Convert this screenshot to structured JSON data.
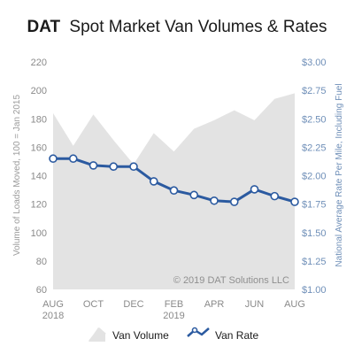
{
  "chart_data": {
    "type": "line",
    "title_brand": "DAT",
    "title": "Spot Market Van Volumes & Rates",
    "x_ticks": [
      {
        "index": 0,
        "line1": "AUG",
        "line2": "2018"
      },
      {
        "index": 2,
        "line1": "OCT",
        "line2": ""
      },
      {
        "index": 4,
        "line1": "DEC",
        "line2": ""
      },
      {
        "index": 6,
        "line1": "FEB",
        "line2": "2019"
      },
      {
        "index": 8,
        "line1": "APR",
        "line2": ""
      },
      {
        "index": 10,
        "line1": "JUN",
        "line2": ""
      },
      {
        "index": 12,
        "line1": "AUG",
        "line2": ""
      }
    ],
    "x_count": 13,
    "y_left": {
      "label": "Volume of Loads Moved, 100 = Jan 2015",
      "range": [
        60,
        220
      ],
      "ticks": [
        "220",
        "200",
        "180",
        "160",
        "140",
        "120",
        "100",
        "80",
        "60"
      ],
      "tick_values": [
        220,
        200,
        180,
        160,
        140,
        120,
        100,
        80,
        60
      ]
    },
    "y_right": {
      "label": "National Average Rate Per Mile, Including Fuel",
      "range": [
        1.0,
        3.0
      ],
      "ticks": [
        "$3.00",
        "$2.75",
        "$2.50",
        "$2.25",
        "$2.00",
        "$1.75",
        "$1.50",
        "$1.25",
        "$1.00"
      ],
      "tick_values": [
        3.0,
        2.75,
        2.5,
        2.25,
        2.0,
        1.75,
        1.5,
        1.25,
        1.0
      ]
    },
    "series": [
      {
        "name": "Van Volume",
        "kind": "area",
        "axis": "left",
        "color": "#e3e3e3",
        "values": [
          184,
          161,
          183,
          165,
          148,
          170,
          157,
          173,
          179,
          186,
          179,
          194,
          198
        ]
      },
      {
        "name": "Van Rate",
        "kind": "line",
        "axis": "right",
        "color": "#2b5aa0",
        "values": [
          2.15,
          2.15,
          2.09,
          2.08,
          2.08,
          1.95,
          1.87,
          1.83,
          1.78,
          1.77,
          1.88,
          1.82,
          1.77
        ]
      }
    ],
    "annotation": "© 2019 DAT Solutions LLC",
    "grid": false,
    "legend": "bottom"
  }
}
